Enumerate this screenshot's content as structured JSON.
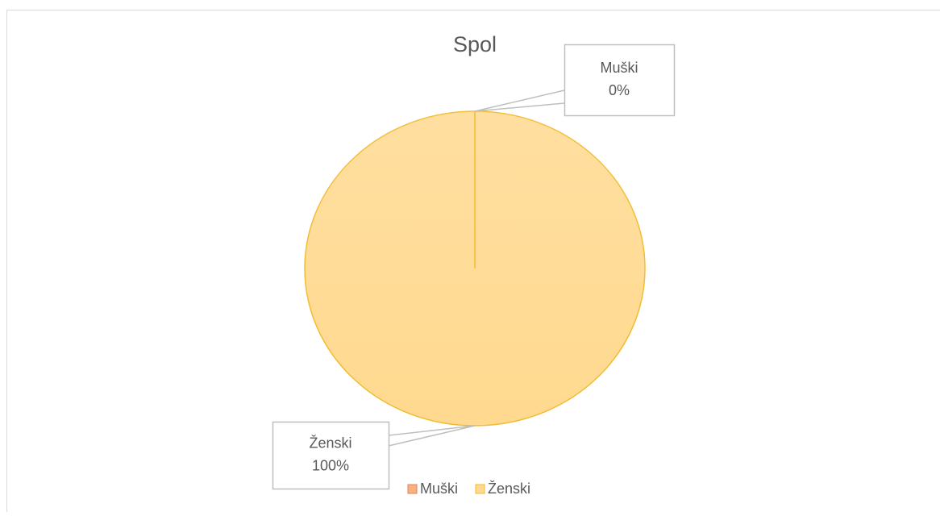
{
  "chart_data": {
    "type": "pie",
    "title": "Spol",
    "categories": [
      "Muški",
      "Ženski"
    ],
    "values": [
      0,
      100
    ],
    "value_labels": [
      "0%",
      "100%"
    ],
    "colors": [
      "#f4b183",
      "#ffd98f"
    ],
    "legend": "bottom"
  }
}
